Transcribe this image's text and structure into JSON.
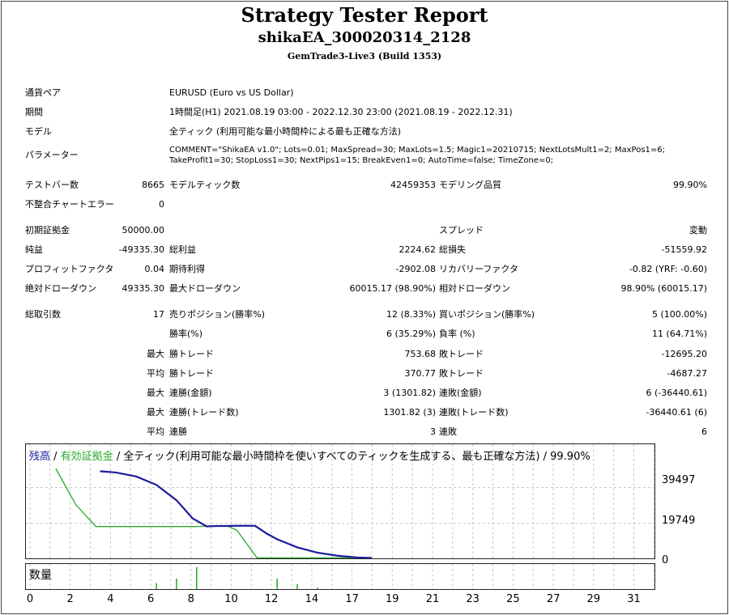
{
  "header": {
    "title": "Strategy Tester Report",
    "ea_name": "shikaEA_300020314_2128",
    "server": "GemTrade3-Live3 (Build 1353)"
  },
  "settings": [
    {
      "label": "通貨ペア",
      "value": "EURUSD (Euro vs US Dollar)"
    },
    {
      "label": "期間",
      "value": "1時間足(H1) 2021.08.19 03:00 - 2022.12.30 23:00 (2021.08.19 - 2022.12.31)"
    },
    {
      "label": "モデル",
      "value": "全ティック (利用可能な最小時間枠による最も正確な方法)"
    },
    {
      "label": "パラメーター",
      "value": "COMMENT=\"ShikaEA v1.0\"; Lots=0.01; MaxSpread=30; MaxLots=1.5; Magic1=20210715; NextLotsMult1=2; MaxPos1=6;",
      "value2": "TakeProfit1=30; StopLoss1=30; NextPips1=15; BreakEven1=0; AutoTime=false; TimeZone=0;"
    }
  ],
  "stats": {
    "bars_label": "テストバー数",
    "bars_value": "8665",
    "ticks_label": "モデルティック数",
    "ticks_value": "42459353",
    "quality_label": "モデリング品質",
    "quality_value": "99.90%",
    "mismatch_label": "不整合チャートエラー",
    "mismatch_value": "0",
    "deposit_label": "初期証拠金",
    "deposit_value": "50000.00",
    "spread_label": "スプレッド",
    "spread_value": "変動",
    "net_label": "純益",
    "net_value": "-49335.30",
    "gross_profit_label": "総利益",
    "gross_profit_value": "2224.62",
    "gross_loss_label": "総損失",
    "gross_loss_value": "-51559.92",
    "pf_label": "プロフィットファクタ",
    "pf_value": "0.04",
    "expected_label": "期待利得",
    "expected_value": "-2902.08",
    "recovery_label": "リカバリーファクタ",
    "recovery_value": "-0.82 (YRF: -0.60)",
    "abs_dd_label": "絶対ドローダウン",
    "abs_dd_value": "49335.30",
    "max_dd_label": "最大ドローダウン",
    "max_dd_value": "60015.17 (98.90%)",
    "rel_dd_label": "相対ドローダウン",
    "rel_dd_value": "98.90% (60015.17)",
    "total_trades_label": "総取引数",
    "total_trades_value": "17",
    "short_label": "売りポジション(勝率%)",
    "short_value": "12 (8.33%)",
    "long_label": "買いポジション(勝率%)",
    "long_value": "5 (100.00%)",
    "win_label": "勝率(%)",
    "win_value": "6 (35.29%)",
    "loss_label": "負率 (%)",
    "loss_value": "11 (64.71%)",
    "max_prefix": "最大",
    "avg_prefix": "平均",
    "max_win_label": "勝トレード",
    "max_win_value": "753.68",
    "max_loss_label": "敗トレード",
    "max_loss_value": "-12695.20",
    "avg_win_label": "勝トレード",
    "avg_win_value": "370.77",
    "avg_loss_label": "敗トレード",
    "avg_loss_value": "-4687.27",
    "cons_win_money_label": "連勝(金額)",
    "cons_win_money_value": "3 (1301.82)",
    "cons_loss_money_label": "連敗(金額)",
    "cons_loss_money_value": "6 (-36440.61)",
    "cons_win_count_label": "連勝(トレード数)",
    "cons_win_count_value": "1301.82 (3)",
    "cons_loss_count_label": "連敗(トレード数)",
    "cons_loss_count_value": "-36440.61 (6)",
    "avg_cons_win_label": "連勝",
    "avg_cons_win_value": "3",
    "avg_cons_loss_label": "連敗",
    "avg_cons_loss_value": "6"
  },
  "chart_data": {
    "type": "line",
    "legend_balance": "残高",
    "legend_sep1": " / ",
    "legend_equity": "有効証拠金",
    "legend_rest": " / 全ティック(利用可能な最小時間枠を使いすべてのティックを生成する、最も正確な方法) / 99.90%",
    "volume_label": "数量",
    "y_ticks": [
      "39497",
      "19749",
      "0"
    ],
    "y_tick_values": [
      39497,
      19749,
      0
    ],
    "ylim": [
      0,
      50000
    ],
    "x_ticks": [
      "0",
      "2",
      "4",
      "6",
      "8",
      "10",
      "12",
      "14",
      "17",
      "19",
      "21",
      "23",
      "25",
      "27",
      "29",
      "31"
    ],
    "xlim": [
      0,
      31
    ],
    "colors": {
      "balance": "#1c1c9c",
      "equity": "#2aa82a",
      "volume": "#22aa22",
      "grid": "#c8c8c8"
    },
    "series": [
      {
        "name": "残高",
        "x": [
          4.2,
          5,
          6,
          7,
          8,
          8.8,
          9.5,
          10,
          10.5,
          11,
          11.2,
          11.9,
          12.5,
          13,
          14,
          15,
          16,
          17,
          17.7
        ],
        "values": [
          48500,
          47800,
          45600,
          41000,
          32500,
          22500,
          18100,
          18300,
          18300,
          18400,
          18400,
          18400,
          14000,
          11000,
          6500,
          3600,
          1900,
          900,
          700
        ]
      },
      {
        "name": "有効証拠金",
        "x": [
          2,
          3,
          4,
          5,
          6,
          7,
          8,
          9,
          10,
          10.5,
          11,
          12,
          13,
          14,
          15,
          16,
          17,
          17.7
        ],
        "values": [
          50000,
          30000,
          18000,
          18000,
          18000,
          18000,
          18000,
          18000,
          18400,
          18400,
          16000,
          700,
          700,
          700,
          700,
          700,
          700,
          700
        ]
      }
    ],
    "volume": {
      "x": [
        7,
        8,
        9,
        13,
        14,
        15
      ],
      "values": [
        0.3,
        0.5,
        1.0,
        0.5,
        0.25,
        0.1
      ]
    }
  }
}
